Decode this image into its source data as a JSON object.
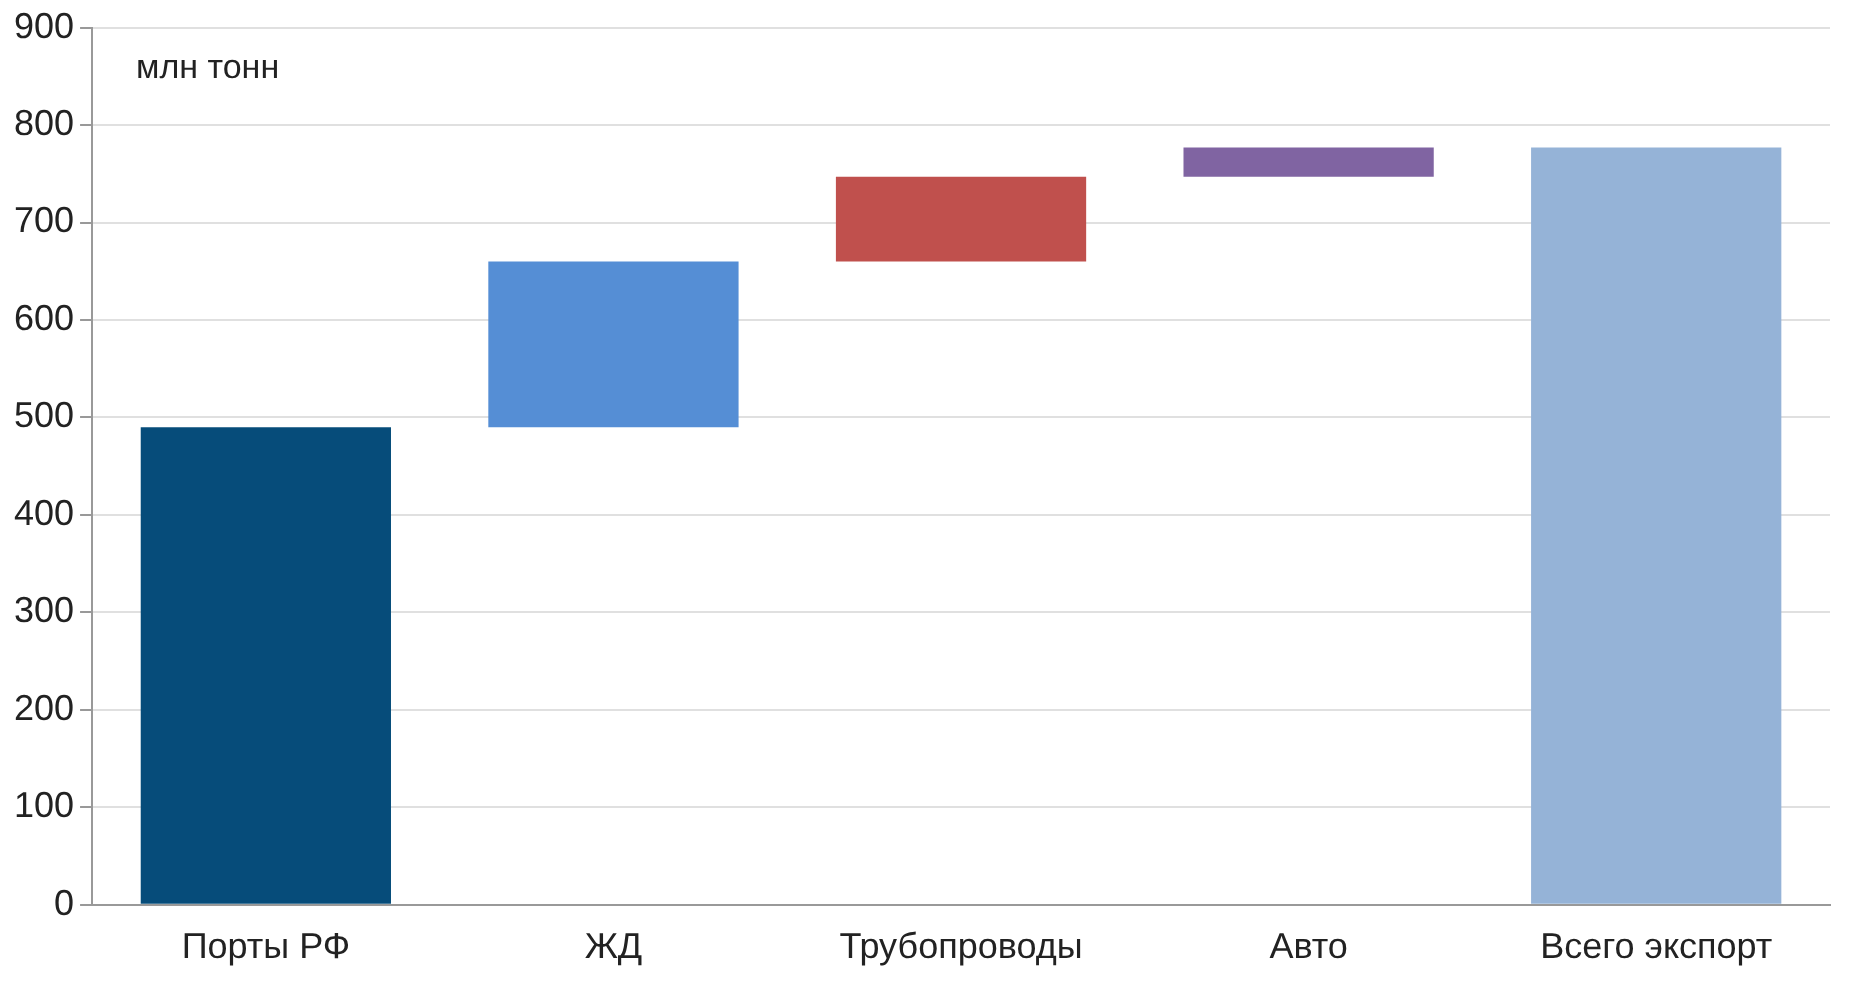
{
  "chart_data": {
    "type": "bar",
    "categories": [
      "Порты РФ",
      "ЖД",
      "Трубопроводы",
      "Авто",
      "Всего экспорт"
    ],
    "values": [
      490,
      170,
      87,
      30,
      777
    ],
    "base": [
      0,
      490,
      660,
      747,
      0
    ],
    "colors": [
      "#064c7a",
      "#558ed5",
      "#c0504d",
      "#8064a2",
      "#95b3d7"
    ],
    "ylim": [
      0,
      900
    ],
    "yticks": [
      0,
      100,
      200,
      300,
      400,
      500,
      600,
      700,
      800,
      900
    ],
    "grid": "y",
    "legend": false,
    "annotations": [
      "млн тонн"
    ]
  }
}
